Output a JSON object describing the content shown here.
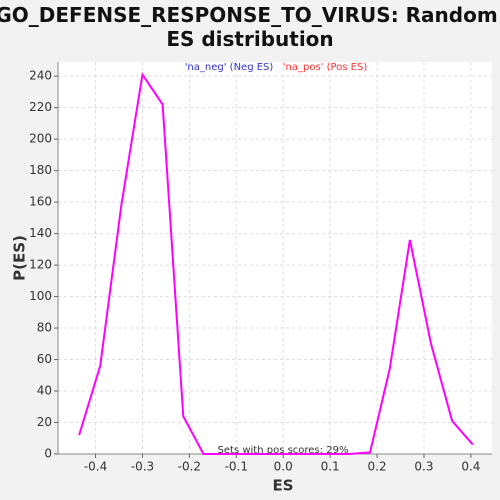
{
  "chart_data": {
    "type": "line",
    "title": "GO_DEFENSE_RESPONSE_TO_VIRUS: Random ES distribution",
    "x_label": "ES",
    "y_label": "P(ES)",
    "legend": [
      {
        "name": "'na_neg' (Neg ES)",
        "color": "#3333cc"
      },
      {
        "name": "'na_pos' (Pos ES)",
        "color": "#ff3333"
      }
    ],
    "annotation": "Sets with pos scores: 29%",
    "x": [
      -0.435,
      -0.39,
      -0.345,
      -0.3,
      -0.257,
      -0.213,
      -0.17,
      -0.125,
      -0.08,
      -0.035,
      0.01,
      0.055,
      0.1,
      0.14,
      0.185,
      0.227,
      0.27,
      0.315,
      0.36,
      0.404
    ],
    "series": [
      {
        "color": "#ff00ff",
        "values": [
          12,
          56,
          158,
          241,
          222,
          24,
          0,
          0,
          0,
          0,
          0,
          0,
          0,
          0,
          1,
          54,
          136,
          70,
          21,
          6
        ]
      }
    ],
    "xlim": [
      -0.48,
      0.445
    ],
    "ylim": [
      0,
      249
    ],
    "xticks": [
      -0.4,
      -0.3,
      -0.2,
      -0.1,
      {
        "value": 0,
        "label": "0.0"
      },
      0.1,
      0.2,
      0.3,
      0.4
    ],
    "yticks": [
      0,
      20,
      40,
      60,
      80,
      100,
      120,
      140,
      160,
      180,
      200,
      220,
      240
    ],
    "grid": true
  }
}
